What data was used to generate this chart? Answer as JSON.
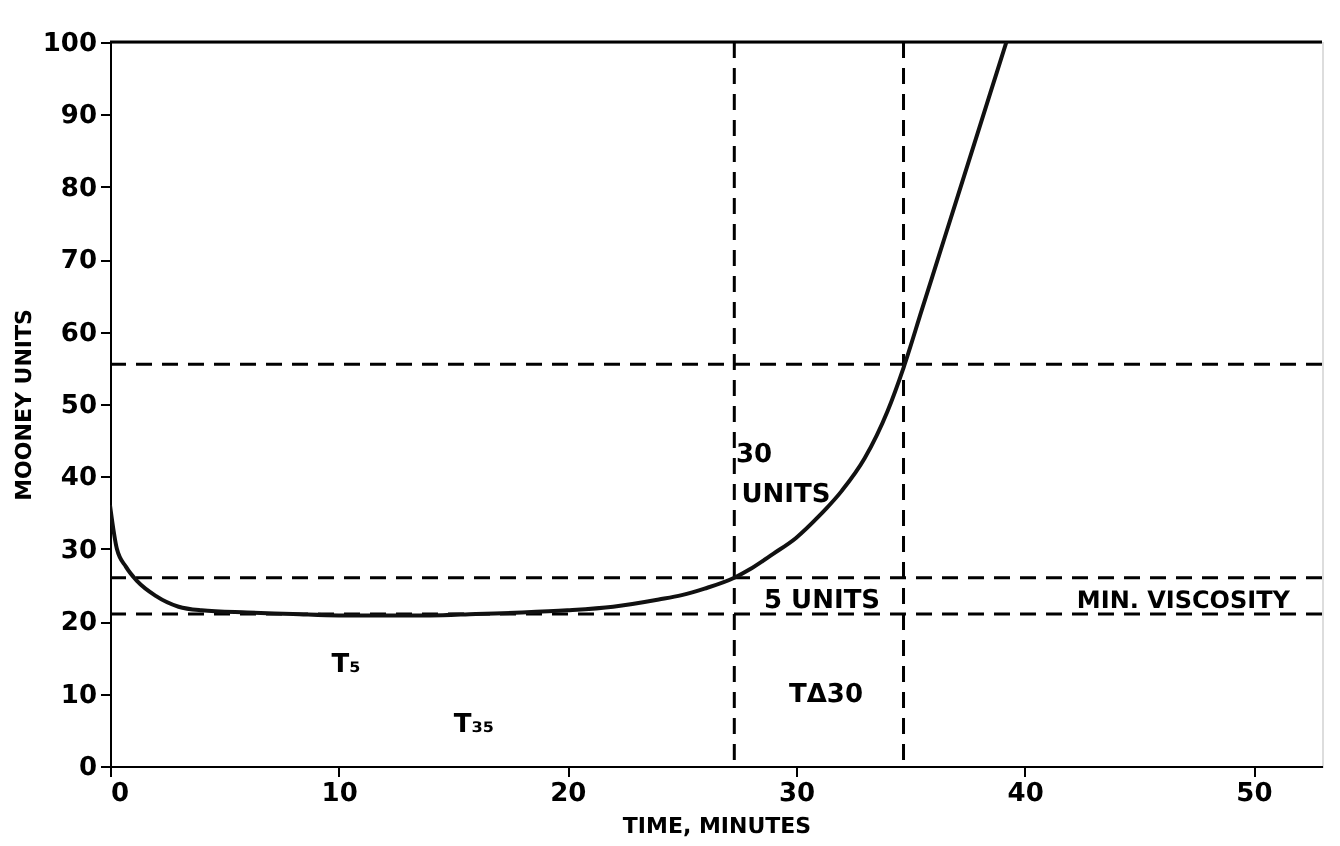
{
  "chart_data": {
    "type": "line",
    "xlabel": "TIME, MINUTES",
    "ylabel": "MOONEY UNITS",
    "xlim": [
      0,
      53
    ],
    "xticks": [
      0,
      10,
      20,
      30,
      40,
      50
    ],
    "ylim": [
      0,
      100
    ],
    "yticks": [
      0,
      10,
      20,
      30,
      40,
      50,
      60,
      70,
      80,
      90,
      100
    ],
    "line_style": "solid",
    "series": [
      {
        "color": "#111111",
        "x": [
          0,
          0.3,
          0.7,
          1.2,
          2,
          3,
          4,
          6,
          8,
          10,
          12,
          14,
          16,
          18,
          20,
          22,
          24,
          25,
          26,
          27.3,
          28,
          29,
          30,
          31,
          32,
          33,
          34,
          34.7,
          35.5,
          36.5,
          37.5,
          38.5,
          39.2
        ],
        "values": [
          36,
          30,
          27.5,
          25.5,
          23.5,
          22,
          21.5,
          21.2,
          21,
          20.8,
          20.8,
          20.8,
          21,
          21.2,
          21.5,
          22,
          23,
          23.6,
          24.5,
          26,
          27.2,
          29.3,
          31.5,
          34.5,
          38,
          42.5,
          49,
          55,
          63,
          73,
          83,
          93,
          100
        ]
      }
    ],
    "ref_lines": [
      {
        "axis": "y",
        "value": 21,
        "label": "MIN. VISCOSITY",
        "line_style": "dashed"
      },
      {
        "axis": "y",
        "value": 26,
        "label": null,
        "line_style": "dashed"
      },
      {
        "axis": "y",
        "value": 55.5,
        "label": null,
        "line_style": "dashed"
      },
      {
        "axis": "x",
        "value": 27.3,
        "label": null,
        "line_style": "dashed"
      },
      {
        "axis": "x",
        "value": 34.7,
        "label": null,
        "line_style": "dashed"
      }
    ],
    "annotations": [
      "30",
      "UNITS",
      "5 UNITS",
      "T₅",
      "T₃₅",
      "TΔ30"
    ]
  }
}
